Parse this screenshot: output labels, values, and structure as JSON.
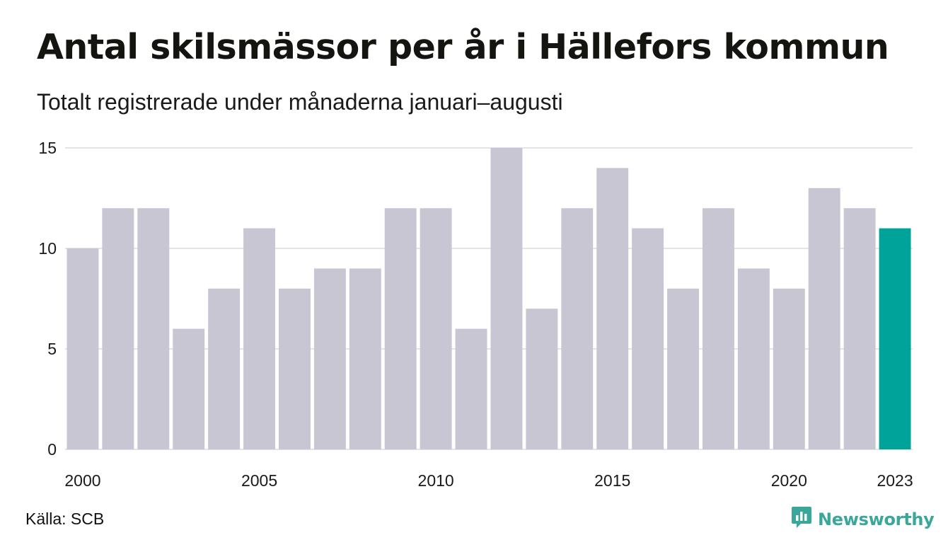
{
  "colors": {
    "bar": "#c8c6d2",
    "highlight": "#00a39a",
    "grid": "#e4e4e8",
    "brand": "#3aa79b"
  },
  "footer": {
    "source": "Källa: SCB",
    "brand_name": "Newsworthy",
    "brand_icon": "newsworthy-chart-bubble-icon"
  },
  "chart_data": {
    "type": "bar",
    "title": "Antal skilsmässor per år i Hällefors kommun",
    "subtitle": "Totalt registrerade under månaderna januari–augusti",
    "xlabel": "",
    "ylabel": "",
    "categories": [
      2000,
      2001,
      2002,
      2003,
      2004,
      2005,
      2006,
      2007,
      2008,
      2009,
      2010,
      2011,
      2012,
      2013,
      2014,
      2015,
      2016,
      2017,
      2018,
      2019,
      2020,
      2021,
      2022,
      2023
    ],
    "values": [
      10,
      12,
      12,
      6,
      8,
      11,
      8,
      9,
      9,
      12,
      12,
      6,
      15,
      7,
      12,
      14,
      11,
      8,
      12,
      9,
      8,
      13,
      12,
      11
    ],
    "highlight_category": 2023,
    "ylim": [
      0,
      15
    ],
    "yticks": [
      0,
      5,
      10,
      15
    ],
    "xticks": [
      2000,
      2005,
      2010,
      2015,
      2020,
      2023
    ],
    "grid": true,
    "legend": "none"
  }
}
